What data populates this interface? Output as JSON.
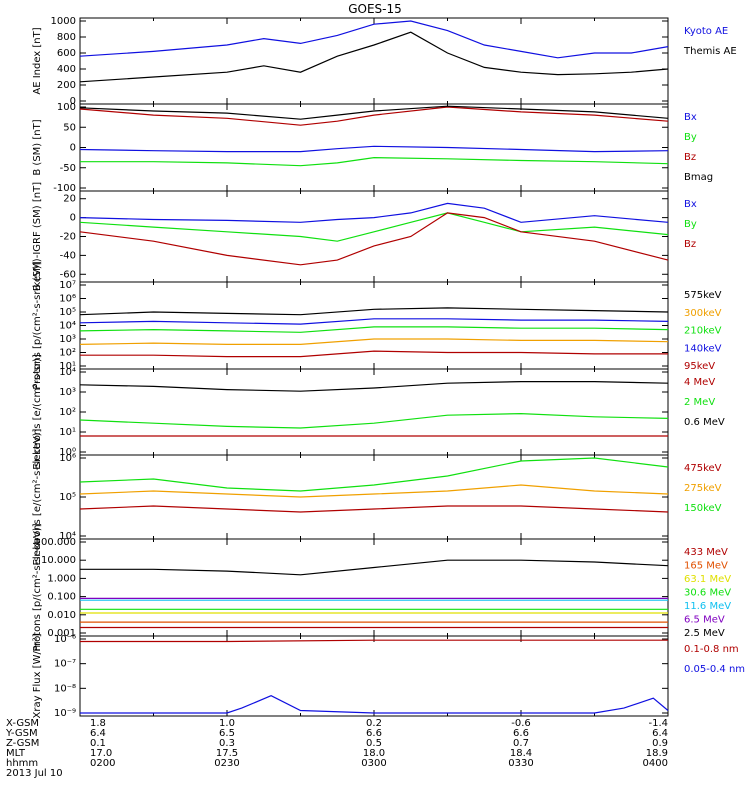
{
  "title": "GOES-15",
  "colors": {
    "black": "#000000",
    "blue": "#1010e0",
    "green": "#10e010",
    "red": "#b00000",
    "orange": "#f0a000",
    "cyan": "#10c0f0",
    "purple": "#8000c0",
    "dark_orange": "#e05000",
    "yellow": "#e0e000"
  },
  "chart_data": [
    {
      "type": "line",
      "ylabel": "AE Index [nT]",
      "ylim": [
        0,
        1000
      ],
      "yticks": [
        "0",
        "200",
        "400",
        "600",
        "800",
        "1000"
      ],
      "series": [
        {
          "name": "Kyoto AE",
          "color": "blue",
          "x": [
            0,
            0.5,
            1,
            1.25,
            1.5,
            1.75,
            2,
            2.25,
            2.5,
            2.75,
            3,
            3.25,
            3.5,
            3.75,
            4
          ],
          "values": [
            560,
            620,
            700,
            780,
            720,
            820,
            960,
            1000,
            880,
            700,
            620,
            540,
            600,
            600,
            680
          ]
        },
        {
          "name": "Themis AE",
          "color": "black",
          "x": [
            0,
            0.5,
            1,
            1.25,
            1.5,
            1.75,
            2,
            2.25,
            2.5,
            2.75,
            3,
            3.25,
            3.5,
            3.75,
            4
          ],
          "values": [
            240,
            300,
            360,
            440,
            360,
            560,
            700,
            860,
            600,
            420,
            360,
            330,
            340,
            360,
            400
          ]
        }
      ]
    },
    {
      "type": "line",
      "ylabel": "B (SM) [nT]",
      "ylim": [
        -100,
        100
      ],
      "yticks": [
        "-100",
        "-50",
        "0",
        "50",
        "100"
      ],
      "series": [
        {
          "name": "Bx",
          "color": "blue",
          "x": [
            0,
            0.5,
            1,
            1.5,
            1.75,
            2,
            2.5,
            3,
            3.5,
            4
          ],
          "values": [
            -5,
            -8,
            -10,
            -10,
            -3,
            3,
            0,
            -5,
            -10,
            -8
          ]
        },
        {
          "name": "By",
          "color": "green",
          "x": [
            0,
            0.5,
            1,
            1.5,
            1.75,
            2,
            2.5,
            3,
            3.5,
            4
          ],
          "values": [
            -35,
            -35,
            -38,
            -45,
            -38,
            -25,
            -28,
            -32,
            -35,
            -40
          ]
        },
        {
          "name": "Bz",
          "color": "red",
          "x": [
            0,
            0.5,
            1,
            1.5,
            1.75,
            2,
            2.5,
            3,
            3.5,
            4
          ],
          "values": [
            95,
            80,
            72,
            55,
            65,
            80,
            100,
            88,
            80,
            65
          ]
        },
        {
          "name": "Bmag",
          "color": "black",
          "x": [
            0,
            0.5,
            1,
            1.5,
            1.75,
            2,
            2.5,
            3,
            3.5,
            4
          ],
          "values": [
            98,
            90,
            85,
            70,
            80,
            90,
            102,
            95,
            88,
            72
          ]
        }
      ]
    },
    {
      "type": "line",
      "ylabel": "B (SM)-IGRF (SM) [nT]",
      "ylim": [
        -65,
        25
      ],
      "yticks": [
        "-60",
        "-40",
        "-20",
        "0",
        "20"
      ],
      "series": [
        {
          "name": "Bx",
          "color": "blue",
          "x": [
            0,
            0.5,
            1,
            1.5,
            1.75,
            2,
            2.25,
            2.5,
            2.75,
            3,
            3.5,
            4
          ],
          "values": [
            0,
            -2,
            -3,
            -5,
            -2,
            0,
            5,
            15,
            10,
            -5,
            2,
            -5
          ]
        },
        {
          "name": "By",
          "color": "green",
          "x": [
            0,
            0.5,
            1,
            1.5,
            1.75,
            2,
            2.25,
            2.5,
            2.75,
            3,
            3.5,
            4
          ],
          "values": [
            -5,
            -10,
            -15,
            -20,
            -25,
            -15,
            -5,
            5,
            -5,
            -15,
            -10,
            -18
          ]
        },
        {
          "name": "Bz",
          "color": "red",
          "x": [
            0,
            0.5,
            1,
            1.5,
            1.75,
            2,
            2.25,
            2.5,
            2.75,
            3,
            3.5,
            4
          ],
          "values": [
            -15,
            -25,
            -40,
            -50,
            -45,
            -30,
            -20,
            5,
            0,
            -15,
            -25,
            -45
          ]
        }
      ]
    },
    {
      "type": "line",
      "ylabel": "Protons [p/(cm²-s-sr-keV)]",
      "ylog": true,
      "ylim": [
        1,
        7
      ],
      "yticks": [
        "10¹",
        "10²",
        "10³",
        "10⁴",
        "10⁵",
        "10⁶",
        "10⁷"
      ],
      "series": [
        {
          "name": "575keV",
          "color": "black",
          "x": [
            0,
            0.5,
            1,
            1.5,
            2,
            2.5,
            3,
            3.5,
            4
          ],
          "values": [
            4.8,
            5.0,
            4.9,
            4.8,
            5.2,
            5.3,
            5.2,
            5.1,
            5.0
          ]
        },
        {
          "name": "300keV",
          "color": "orange",
          "x": [
            0,
            0.5,
            1,
            1.5,
            2,
            2.5,
            3,
            3.5,
            4
          ],
          "values": [
            2.6,
            2.7,
            2.6,
            2.6,
            3.0,
            3.0,
            2.9,
            2.9,
            2.8
          ]
        },
        {
          "name": "210keV",
          "color": "green",
          "x": [
            0,
            0.5,
            1,
            1.5,
            2,
            2.5,
            3,
            3.5,
            4
          ],
          "values": [
            3.6,
            3.7,
            3.6,
            3.5,
            3.9,
            3.9,
            3.8,
            3.8,
            3.7
          ]
        },
        {
          "name": "140keV",
          "color": "blue",
          "x": [
            0,
            0.5,
            1,
            1.5,
            2,
            2.5,
            3,
            3.5,
            4
          ],
          "values": [
            4.2,
            4.3,
            4.2,
            4.1,
            4.5,
            4.5,
            4.4,
            4.4,
            4.3
          ]
        },
        {
          "name": "95keV",
          "color": "red",
          "x": [
            0,
            0.5,
            1,
            1.5,
            2,
            2.5,
            3,
            3.5,
            4
          ],
          "values": [
            1.8,
            1.8,
            1.7,
            1.7,
            2.1,
            2.0,
            2.0,
            1.9,
            1.9
          ]
        }
      ]
    },
    {
      "type": "line",
      "ylabel": "Electrons [e/(cm²-s-sr)]",
      "ylog": true,
      "ylim": [
        0,
        5
      ],
      "yticks": [
        "10⁰",
        "10¹",
        "10²",
        "10³",
        "10⁴"
      ],
      "series": [
        {
          "name": "4 MeV",
          "color": "red",
          "x": [
            0,
            0.5,
            1,
            1.5,
            2,
            2.5,
            3,
            3.5,
            4
          ],
          "values": [
            1.0,
            1.0,
            1.0,
            1.0,
            1.0,
            1.0,
            1.0,
            1.0,
            1.0
          ]
        },
        {
          "name": "2 MeV",
          "color": "green",
          "x": [
            0,
            0.5,
            1,
            1.5,
            2,
            2.5,
            3,
            3.5,
            4
          ],
          "values": [
            2.0,
            1.8,
            1.6,
            1.5,
            1.8,
            2.3,
            2.4,
            2.2,
            2.1
          ]
        },
        {
          "name": "0.6 MeV",
          "color": "black",
          "x": [
            0,
            0.5,
            1,
            1.5,
            2,
            2.5,
            3,
            3.5,
            4
          ],
          "values": [
            4.2,
            4.1,
            3.9,
            3.8,
            4.0,
            4.3,
            4.4,
            4.4,
            4.3
          ]
        }
      ]
    },
    {
      "type": "line",
      "ylabel": "Electrons [e/(cm²-s-sr-keV)]",
      "ylog": true,
      "ylim": [
        3.4,
        6
      ],
      "yticks": [
        "10⁴",
        "10⁵",
        "10⁶"
      ],
      "series": [
        {
          "name": "475keV",
          "color": "red",
          "x": [
            0,
            0.5,
            1,
            1.5,
            2,
            2.5,
            3,
            3.5,
            4
          ],
          "values": [
            4.3,
            4.4,
            4.3,
            4.2,
            4.3,
            4.4,
            4.4,
            4.3,
            4.2
          ]
        },
        {
          "name": "275keV",
          "color": "orange",
          "x": [
            0,
            0.5,
            1,
            1.5,
            2,
            2.5,
            3,
            3.5,
            4
          ],
          "values": [
            4.8,
            4.9,
            4.8,
            4.7,
            4.8,
            4.9,
            5.1,
            4.9,
            4.8
          ]
        },
        {
          "name": "150keV",
          "color": "green",
          "x": [
            0,
            0.5,
            1,
            1.5,
            2,
            2.5,
            3,
            3.5,
            4
          ],
          "values": [
            5.2,
            5.3,
            5.0,
            4.9,
            5.1,
            5.4,
            5.9,
            6.0,
            5.7
          ]
        }
      ]
    },
    {
      "type": "line",
      "ylabel": "Protons [p/(cm²-s-sr-keV)]",
      "ylog": true,
      "ylim": [
        -3,
        2
      ],
      "yticks": [
        "0.001",
        "0.010",
        "0.100",
        "1.000",
        "10.000",
        "100.000"
      ],
      "series": [
        {
          "name": "433 MeV",
          "color": "red",
          "x": [
            0,
            1,
            2,
            3,
            4
          ],
          "values": [
            -2.7,
            -2.7,
            -2.7,
            -2.7,
            -2.7
          ]
        },
        {
          "name": "165 MeV",
          "color": "dark_orange",
          "x": [
            0,
            1,
            2,
            3,
            4
          ],
          "values": [
            -2.4,
            -2.4,
            -2.4,
            -2.4,
            -2.4
          ]
        },
        {
          "name": "63.1 MeV",
          "color": "yellow",
          "x": [
            0,
            1,
            2,
            3,
            4
          ],
          "values": [
            -1.9,
            -1.9,
            -1.9,
            -1.9,
            -1.9
          ]
        },
        {
          "name": "30.6 MeV",
          "color": "green",
          "x": [
            0,
            1,
            2,
            3,
            4
          ],
          "values": [
            -1.7,
            -1.7,
            -1.7,
            -1.7,
            -1.7
          ]
        },
        {
          "name": "11.6 MeV",
          "color": "cyan",
          "x": [
            0,
            1,
            2,
            3,
            4
          ],
          "values": [
            -1.2,
            -1.2,
            -1.2,
            -1.2,
            -1.2
          ]
        },
        {
          "name": "6.5 MeV",
          "color": "purple",
          "x": [
            0,
            1,
            2,
            3,
            4
          ],
          "values": [
            -1.1,
            -1.1,
            -1.1,
            -1.1,
            -1.1
          ]
        },
        {
          "name": "2.5 MeV",
          "color": "black",
          "x": [
            0,
            0.5,
            1,
            1.5,
            2,
            2.5,
            3,
            3.5,
            4
          ],
          "values": [
            0.5,
            0.5,
            0.4,
            0.2,
            0.6,
            1.0,
            1.0,
            0.9,
            0.7
          ]
        }
      ]
    },
    {
      "type": "line",
      "ylabel": "Xray Flux [W/m²]",
      "ylog": true,
      "ylim": [
        -9,
        -6
      ],
      "yticks": [
        "10⁻⁹",
        "10⁻⁸",
        "10⁻⁷",
        "10⁻⁶"
      ],
      "series": [
        {
          "name": "0.1-0.8 nm",
          "color": "red",
          "x": [
            0,
            1,
            2,
            3,
            4
          ],
          "values": [
            -6.1,
            -6.1,
            -6.05,
            -6.05,
            -6.05
          ]
        },
        {
          "name": "0.05-0.4 nm",
          "color": "blue",
          "x": [
            0,
            0.5,
            1,
            1.1,
            1.3,
            1.5,
            2,
            3,
            3.5,
            3.7,
            3.9,
            4
          ],
          "values": [
            -9.0,
            -9.0,
            -9.0,
            -8.8,
            -8.3,
            -8.9,
            -9.0,
            -9.0,
            -9.0,
            -8.8,
            -8.4,
            -8.9
          ]
        }
      ]
    }
  ],
  "footer": {
    "labels": [
      "X-GSM",
      "Y-GSM",
      "Z-GSM",
      "MLT",
      "hhmm",
      "2013 Jul 10"
    ],
    "rows": [
      [
        "1.8",
        "1.0",
        "0.2",
        "-0.6",
        "-1.4"
      ],
      [
        "6.4",
        "6.5",
        "6.6",
        "6.6",
        "6.4"
      ],
      [
        "0.1",
        "0.3",
        "0.5",
        "0.7",
        "0.9"
      ],
      [
        "17.0",
        "17.5",
        "18.0",
        "18.4",
        "18.9"
      ],
      [
        "0200",
        "0230",
        "0300",
        "0330",
        "0400"
      ]
    ]
  }
}
